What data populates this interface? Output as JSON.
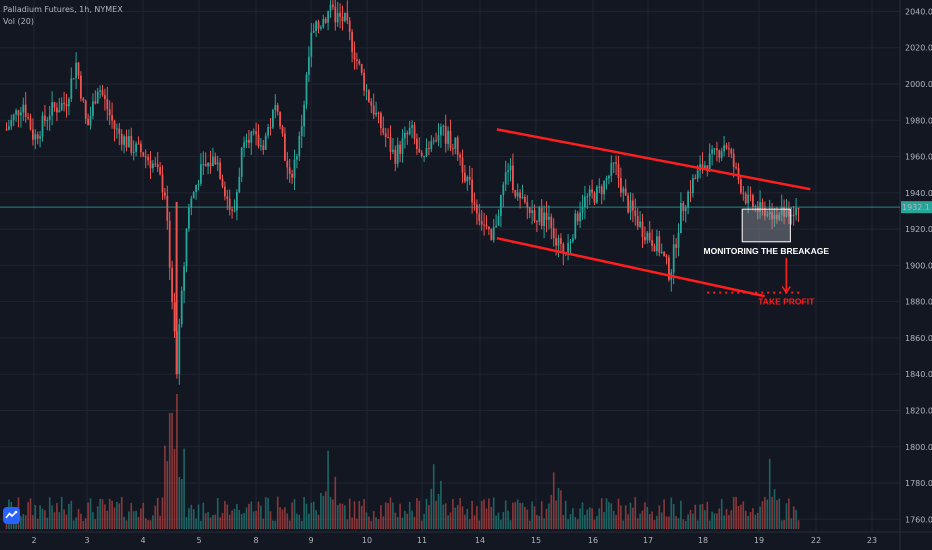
{
  "header": {
    "symbol_line": "Palladium Futures, 1h, NYMEX",
    "volume_label": "Vol (20)"
  },
  "colors": {
    "background": "#131722",
    "grid": "#1f2431",
    "up": "#26a69a",
    "down": "#ef5350",
    "trendline": "#ff1e1e",
    "price_line": "#26a69a",
    "annotation_text": "#ffffff",
    "take_profit_text": "#ff1e1e"
  },
  "chart_data": {
    "type": "candlestick",
    "ylim": [
      1753,
      2043
    ],
    "yticks": [
      2040,
      2020,
      2000,
      1980,
      1960,
      1940,
      1920,
      1900,
      1880,
      1860,
      1840,
      1820,
      1800,
      1780,
      1760
    ],
    "xticks": [
      {
        "label": "2",
        "day": 2
      },
      {
        "label": "3",
        "day": 3
      },
      {
        "label": "4",
        "day": 4
      },
      {
        "label": "5",
        "day": 5
      },
      {
        "label": "8",
        "day": 8
      },
      {
        "label": "9",
        "day": 9
      },
      {
        "label": "10",
        "day": 10
      },
      {
        "label": "11",
        "day": 11
      },
      {
        "label": "14",
        "day": 14
      },
      {
        "label": "15",
        "day": 15
      },
      {
        "label": "16",
        "day": 16
      },
      {
        "label": "17",
        "day": 17
      },
      {
        "label": "18",
        "day": 18
      },
      {
        "label": "19",
        "day": 19
      },
      {
        "label": "22",
        "day": 22
      },
      {
        "label": "23",
        "day": 23
      }
    ],
    "last_price": "1932.1",
    "price_path": [
      [
        1.5,
        1975
      ],
      [
        1.8,
        1990
      ],
      [
        2.0,
        1970
      ],
      [
        2.3,
        1985
      ],
      [
        2.6,
        1990
      ],
      [
        2.8,
        2012
      ],
      [
        3.0,
        1975
      ],
      [
        3.2,
        2000
      ],
      [
        3.5,
        1975
      ],
      [
        3.8,
        1965
      ],
      [
        4.0,
        1962
      ],
      [
        4.2,
        1955
      ],
      [
        4.4,
        1940
      ],
      [
        4.6,
        1842
      ],
      [
        4.8,
        1930
      ],
      [
        5.0,
        1950
      ],
      [
        5.3,
        1960
      ],
      [
        5.6,
        1925
      ],
      [
        5.8,
        1975
      ],
      [
        6.1,
        1965
      ],
      [
        6.4,
        1990
      ],
      [
        6.6,
        1945
      ],
      [
        6.8,
        1970
      ],
      [
        7.0,
        2025
      ],
      [
        7.3,
        2040
      ],
      [
        7.6,
        2035
      ],
      [
        7.8,
        2015
      ],
      [
        8.0,
        1995
      ],
      [
        8.2,
        1980
      ],
      [
        8.5,
        1960
      ],
      [
        8.8,
        1975
      ],
      [
        9.0,
        1955
      ],
      [
        9.3,
        1975
      ],
      [
        9.6,
        1965
      ],
      [
        9.9,
        1935
      ],
      [
        10.2,
        1912
      ],
      [
        10.5,
        1955
      ],
      [
        10.7,
        1935
      ],
      [
        10.9,
        1930
      ],
      [
        11.2,
        1925
      ],
      [
        11.5,
        1905
      ],
      [
        11.8,
        1935
      ],
      [
        12.1,
        1940
      ],
      [
        12.4,
        1955
      ],
      [
        12.6,
        1935
      ],
      [
        12.9,
        1920
      ],
      [
        13.2,
        1910
      ],
      [
        13.4,
        1895
      ],
      [
        13.6,
        1930
      ],
      [
        13.8,
        1945
      ],
      [
        14.0,
        1955
      ],
      [
        14.2,
        1960
      ],
      [
        14.4,
        1968
      ],
      [
        14.6,
        1950
      ],
      [
        14.8,
        1935
      ],
      [
        15.1,
        1928
      ],
      [
        15.4,
        1930
      ],
      [
        15.7,
        1932
      ]
    ],
    "volume_ylim": [
      0,
      100
    ],
    "volume_spikes": [
      {
        "t": 4.6,
        "v": 100
      },
      {
        "t": 4.5,
        "v": 86
      },
      {
        "t": 7.3,
        "v": 58
      },
      {
        "t": 9.2,
        "v": 48
      },
      {
        "t": 11.3,
        "v": 42
      },
      {
        "t": 15.2,
        "v": 52
      }
    ],
    "trendlines": [
      {
        "name": "upper",
        "from": [
          10.3,
          1975
        ],
        "to": [
          15.9,
          1942
        ]
      },
      {
        "name": "lower",
        "from": [
          10.3,
          1915
        ],
        "to": [
          15.1,
          1883
        ]
      }
    ],
    "zone": {
      "t0": 14.7,
      "t1": 15.55,
      "y0": 1931,
      "y1": 1913
    },
    "annotations": {
      "monitoring": "MONITORING THE BREAKAGE",
      "take_profit": "TAKE PROFIT",
      "take_profit_level": 1885
    }
  }
}
